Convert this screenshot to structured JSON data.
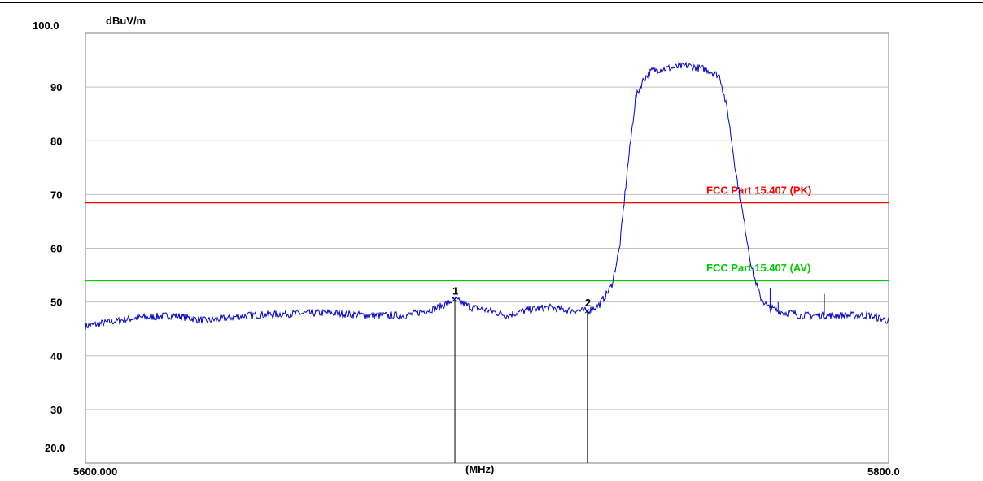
{
  "chart_data": {
    "type": "line",
    "ylabel_unit": "dBuV/m",
    "xlabel": "(MHz)",
    "x_start_label": "5600.000",
    "x_end_label": "5800.0",
    "y_top_label": "100.0",
    "y_bottom_label": "20.0",
    "xlim": [
      5600,
      5800
    ],
    "ylim": [
      20,
      100
    ],
    "yticks": [
      20,
      30,
      40,
      50,
      60,
      70,
      80,
      90,
      100
    ],
    "grid": true,
    "limit_lines": [
      {
        "name": "FCC Part 15.407 (PK)",
        "y": 68.5,
        "color": "#ff0000"
      },
      {
        "name": "FCC Part 15.407 (AV)",
        "y": 54.0,
        "color": "#00cc00"
      }
    ],
    "markers": [
      {
        "label": "1",
        "x": 5692.0,
        "y": 50.5
      },
      {
        "label": "2",
        "x": 5725.0,
        "y": 48.3
      }
    ],
    "series": [
      {
        "color": "#0000cc",
        "x": [
          5600,
          5612,
          5622,
          5630,
          5640,
          5650,
          5660,
          5670,
          5680,
          5688,
          5692,
          5696,
          5700,
          5705,
          5710,
          5715,
          5720,
          5725,
          5728,
          5731,
          5733,
          5735,
          5737,
          5739,
          5741,
          5743,
          5745,
          5750,
          5755,
          5758,
          5760,
          5762,
          5764,
          5766,
          5768,
          5770,
          5772,
          5774,
          5776,
          5778,
          5780,
          5785,
          5790,
          5795,
          5800
        ],
        "y": [
          45.5,
          47.0,
          47.5,
          46.5,
          47.5,
          47.8,
          48.0,
          47.5,
          47.5,
          49.0,
          50.5,
          49.0,
          48.5,
          47.5,
          48.5,
          49.0,
          48.5,
          48.3,
          49.5,
          53.0,
          60.0,
          75.0,
          88.0,
          91.5,
          93.0,
          93.3,
          93.5,
          94.0,
          93.2,
          92.0,
          85.0,
          74.0,
          65.0,
          56.0,
          51.0,
          49.0,
          48.5,
          48.0,
          48.0,
          47.5,
          47.5,
          47.5,
          47.5,
          47.5,
          46.5
        ]
      }
    ],
    "spikes": [
      {
        "x": 5770.5,
        "y": 52.5
      },
      {
        "x": 5772.5,
        "y": 50.0
      },
      {
        "x": 5784.0,
        "y": 51.5
      }
    ]
  }
}
